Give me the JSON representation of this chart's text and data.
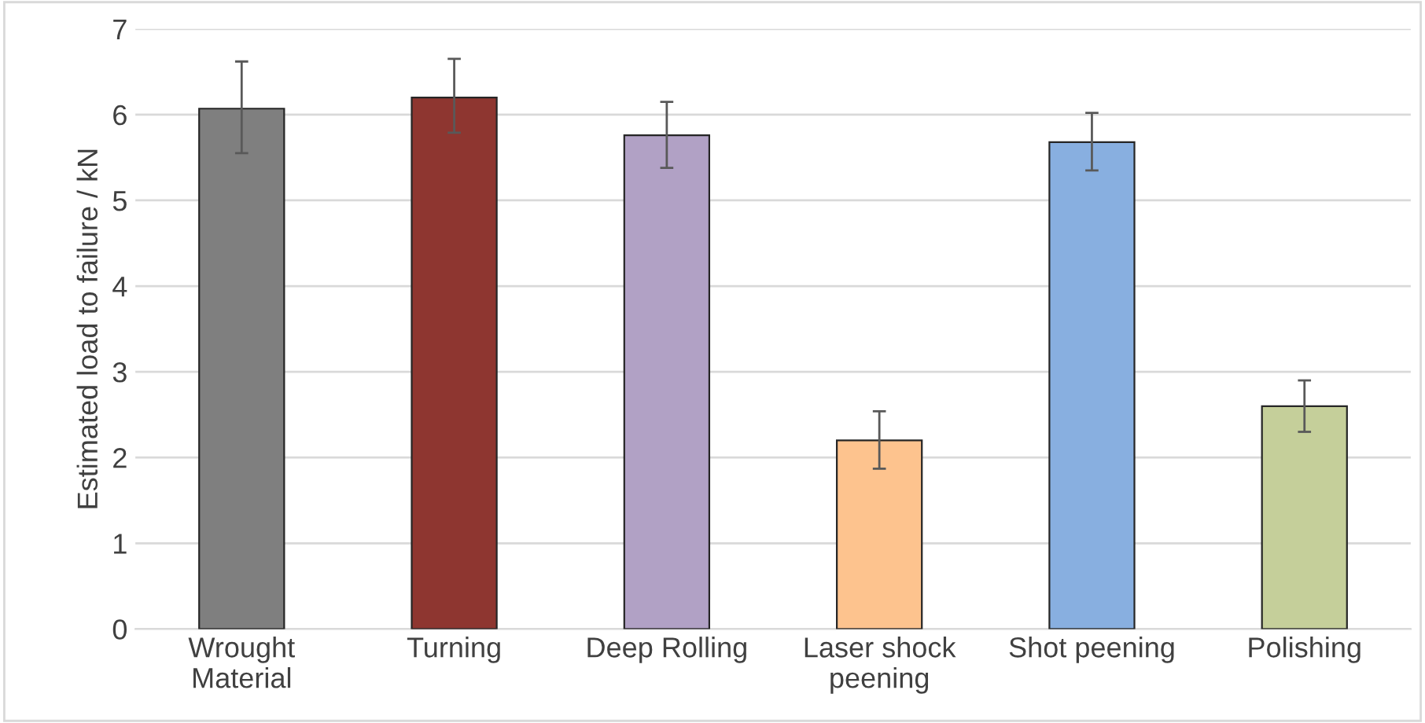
{
  "chart_data": {
    "type": "bar",
    "ylabel": "Estimated load to failure / kN",
    "categories": [
      "Wrought\nMaterial",
      "Turning",
      "Deep Rolling",
      "Laser shock\npeening",
      "Shot peening",
      "Polishing"
    ],
    "values": [
      6.07,
      6.2,
      5.76,
      2.2,
      5.68,
      2.6
    ],
    "colors": [
      "#7f7f7f",
      "#8e3630",
      "#b1a1c5",
      "#fdc38e",
      "#88afe0",
      "#c5cf9a"
    ],
    "errors": [
      [
        5.55,
        6.62
      ],
      [
        5.79,
        6.65
      ],
      [
        5.38,
        6.15
      ],
      [
        1.87,
        2.54
      ],
      [
        5.35,
        6.02
      ],
      [
        2.3,
        2.9
      ]
    ],
    "ylim": [
      0,
      7
    ],
    "yticks": [
      0,
      1,
      2,
      3,
      4,
      5,
      6,
      7
    ],
    "grid": "y",
    "legend": false
  }
}
